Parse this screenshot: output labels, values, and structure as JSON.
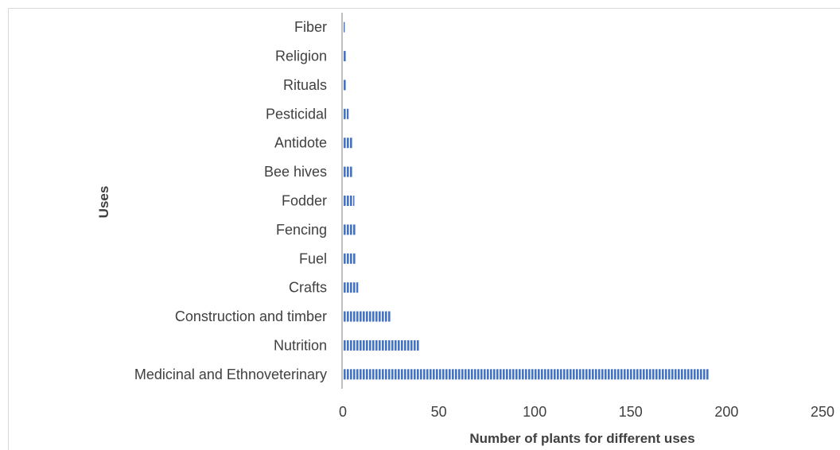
{
  "chart_data": {
    "type": "bar",
    "orientation": "horizontal",
    "categories": [
      "Medicinal and Ethnoveterinary",
      "Nutrition",
      "Construction and timber",
      "Crafts",
      "Fuel",
      "Fencing",
      "Fodder",
      "Bee hives",
      "Antidote",
      "Pesticidal",
      "Rituals",
      "Religion",
      "Fiber"
    ],
    "values": [
      191,
      40,
      25,
      8,
      7,
      7,
      6,
      5,
      5,
      3,
      2,
      2,
      1
    ],
    "xlabel": "Number of plants for different uses",
    "ylabel": "Uses",
    "xlim": [
      0,
      250
    ],
    "xticks": [
      "0",
      "50",
      "100",
      "150",
      "200",
      "250"
    ],
    "grid": false,
    "bar_color": "#4472c4",
    "bar_pattern": "vertical-stripes"
  }
}
